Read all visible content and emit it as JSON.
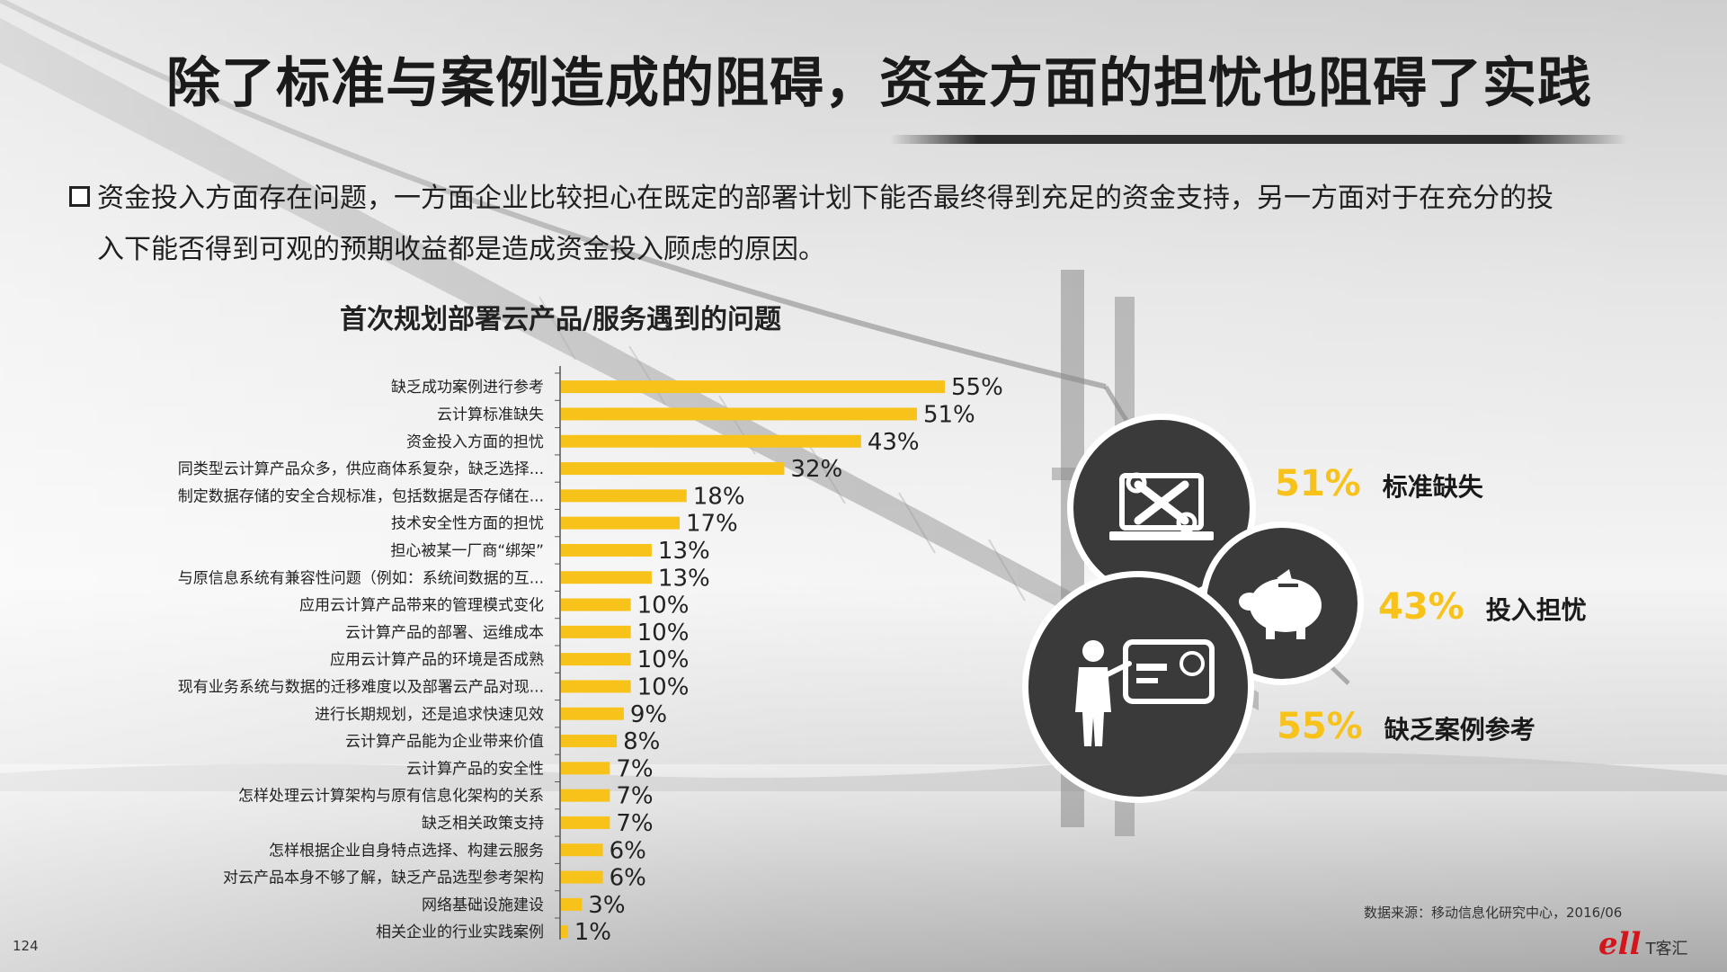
{
  "title": "除了标准与案例造成的阻碍，资金方面的担忧也阻碍了实践",
  "bullet": {
    "line1": "资金投入方面存在问题，一方面企业比较担心在既定的部署计划下能否最终得到充足的资金支持，另一方面对于在充分的投",
    "line2": "入下能否得到可观的预期收益都是造成资金投入顾虑的原因。"
  },
  "chart_title": "首次规划部署云产品/服务遇到的问题",
  "chart_data": {
    "type": "bar",
    "orientation": "horizontal",
    "title": "首次规划部署云产品/服务遇到的问题",
    "unit": "%",
    "categories": [
      "缺乏成功案例进行参考",
      "云计算标准缺失",
      "资金投入方面的担忧",
      "同类型云计算产品众多，供应商体系复杂，缺乏选择...",
      "制定数据存储的安全合规标准，包括数据是否存储在...",
      "技术安全性方面的担忧",
      "担心被某一厂商“绑架”",
      "与原信息系统有兼容性问题（例如：系统间数据的互...",
      "应用云计算产品带来的管理模式变化",
      "云计算产品的部署、运维成本",
      "应用云计算产品的环境是否成熟",
      "现有业务系统与数据的迁移难度以及部署云产品对现...",
      "进行长期规划，还是追求快速见效",
      "云计算产品能为企业带来价值",
      "云计算产品的安全性",
      "怎样处理云计算架构与原有信息化架构的关系",
      "缺乏相关政策支持",
      "怎样根据企业自身特点选择、构建云服务",
      "对云产品本身不够了解，缺乏产品选型参考架构",
      "网络基础设施建设",
      "相关企业的行业实践案例"
    ],
    "values": [
      55,
      51,
      43,
      32,
      18,
      17,
      13,
      13,
      10,
      10,
      10,
      10,
      9,
      8,
      7,
      7,
      7,
      6,
      6,
      3,
      1
    ],
    "value_labels": [
      "55%",
      "51%",
      "43%",
      "32%",
      "18%",
      "17%",
      "13%",
      "13%",
      "10%",
      "10%",
      "10%",
      "10%",
      "9%",
      "8%",
      "7%",
      "7%",
      "7%",
      "6%",
      "6%",
      "3%",
      "1%"
    ],
    "bar_color": "#f7c21a",
    "xlim": [
      0,
      55
    ]
  },
  "highlights": [
    {
      "value": "51%",
      "label": "标准缺失",
      "icon": "laptop-tools-icon"
    },
    {
      "value": "43%",
      "label": "投入担忧",
      "icon": "piggy-bank-icon"
    },
    {
      "value": "55%",
      "label": "缺乏案例参考",
      "icon": "presenter-card-icon"
    }
  ],
  "source": "数据来源：移动信息化研究中心，2016/06",
  "page_number": "124",
  "logo": {
    "mark": "ell",
    "text": "T客汇"
  },
  "colors": {
    "accent": "#f7c21a",
    "circle": "#3a3a3a",
    "title": "#1a1a1a"
  }
}
